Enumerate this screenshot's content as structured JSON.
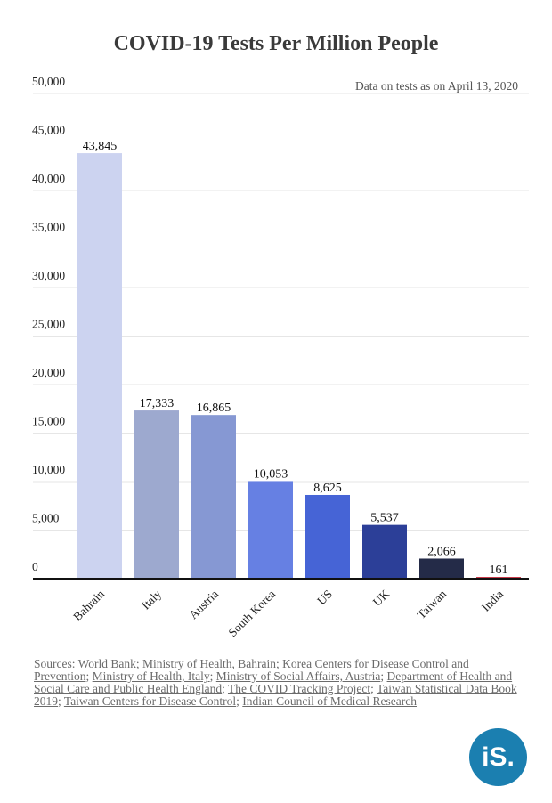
{
  "chart_data": {
    "type": "bar",
    "title": "COVID-19 Tests Per Million People",
    "note": "Data on tests as on April 13, 2020",
    "categories": [
      "Bahrain",
      "Italy",
      "Austria",
      "South Korea",
      "US",
      "UK",
      "Taiwan",
      "India"
    ],
    "values": [
      43845,
      17333,
      16865,
      10053,
      8625,
      5537,
      2066,
      161
    ],
    "value_labels": [
      "43,845",
      "17,333",
      "16,865",
      "10,053",
      "8,625",
      "5,537",
      "2,066",
      "161"
    ],
    "colors": [
      "#ccd3f0",
      "#9da9cf",
      "#8698d3",
      "#6680e3",
      "#4664d6",
      "#2c3f98",
      "#242b48",
      "#c83b4b"
    ],
    "yticks": [
      "0",
      "5,000",
      "10,000",
      "15,000",
      "20,000",
      "25,000",
      "30,000",
      "35,000",
      "40,000",
      "45,000",
      "50,000"
    ],
    "ylim": [
      0,
      50000
    ],
    "grid": true,
    "xlabel": "",
    "ylabel": ""
  },
  "sources": {
    "prefix": "Sources: ",
    "links": [
      "World Bank",
      "Ministry of Health, Bahrain",
      "Korea Centers for Disease Control and Prevention",
      "Ministry of Health, Italy",
      "Ministry of Social Affairs, Austria",
      "Department of Health and Social Care and Public Health England",
      "The COVID Tracking Project",
      "Taiwan Statistical Data Book 2019",
      "Taiwan Centers for Disease Control",
      "Indian Council of Medical Research"
    ]
  },
  "logo": {
    "text": "iS.",
    "color": "#1b7fb0"
  }
}
